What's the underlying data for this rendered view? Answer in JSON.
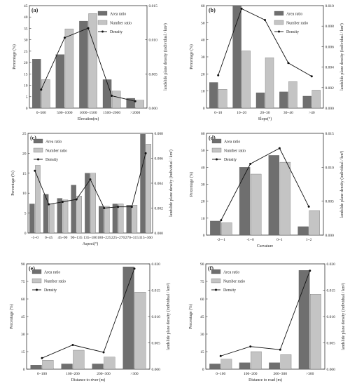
{
  "colors": {
    "area": "#6f6f6f",
    "number": "#c4c4c4",
    "density": "#111111",
    "axis": "#333333"
  },
  "legend": {
    "area": "Area ratio",
    "number": "Number ratio",
    "density": "Density"
  },
  "chart_data": [
    {
      "type": "bar",
      "panel_label": "(a)",
      "categories": [
        "0~500",
        "500~1000",
        "1000~1500",
        "1500~2000",
        ">2000"
      ],
      "series": [
        {
          "name": "Area ratio",
          "values": [
            21.5,
            23.5,
            38.2,
            12.5,
            4.3
          ]
        },
        {
          "name": "Number ratio",
          "values": [
            12.5,
            34.8,
            41.5,
            7.5,
            3.5
          ]
        }
      ],
      "line": {
        "name": "Density",
        "values": [
          0.0027,
          0.0103,
          0.0117,
          0.0018,
          0.001
        ]
      },
      "xlabel": "Elevation(m)",
      "ylabel": "Percentage (%)",
      "y2label": "landslide plane density (individual / km²)",
      "ylim": [
        0,
        45
      ],
      "yticks": [
        0,
        5,
        10,
        15,
        20,
        25,
        30,
        35,
        40,
        45
      ],
      "y2lim": [
        0,
        0.015
      ],
      "y2ticks": [
        "0.000",
        "0.005",
        "0.010",
        "0.015"
      ],
      "y2tickvals": [
        0,
        0.005,
        0.01,
        0.015
      ],
      "legend_position": "top-right"
    },
    {
      "type": "bar",
      "panel_label": "(b)",
      "categories": [
        "0~10",
        "10~20",
        "20~30",
        "30~40",
        ">40"
      ],
      "series": [
        {
          "name": "Area ratio",
          "values": [
            15,
            60,
            9,
            9.5,
            7
          ]
        },
        {
          "name": "Number ratio",
          "values": [
            11,
            33.5,
            29.5,
            15.5,
            10.5
          ]
        }
      ],
      "line": {
        "name": "Density",
        "values": [
          0.0032,
          0.0097,
          0.0086,
          0.0044,
          0.0031
        ]
      },
      "xlabel": "Slope(°)",
      "ylabel": "Percentage (%)",
      "y2label": "landslide plane density (individual / km²)",
      "ylim": [
        0,
        60
      ],
      "yticks": [
        0,
        10,
        20,
        30,
        40,
        50,
        60
      ],
      "y2lim": [
        0,
        0.01
      ],
      "y2ticks": [
        "0.000",
        "0.002",
        "0.004",
        "0.006",
        "0.008",
        "0.010"
      ],
      "y2tickvals": [
        0,
        0.002,
        0.004,
        0.006,
        0.008,
        0.01
      ],
      "legend_position": "top-right"
    },
    {
      "type": "bar",
      "panel_label": "(c)",
      "categories": [
        "-1~0",
        "0~45",
        "45~90",
        "90~135",
        "135~180",
        "180~225",
        "225~270",
        "270~315",
        "315~360"
      ],
      "series": [
        {
          "name": "Area ratio",
          "values": [
            7.3,
            9.7,
            8.7,
            12.0,
            15.0,
            6.7,
            7.3,
            7.0,
            24.8
          ]
        },
        {
          "name": "Number ratio",
          "values": [
            17.0,
            7.3,
            8.3,
            9.3,
            15.0,
            6.7,
            7.3,
            7.0,
            22.3
          ]
        }
      ],
      "line": {
        "name": "Density",
        "values": [
          0.005,
          0.0023,
          0.0025,
          0.0027,
          0.0043,
          0.002,
          0.0021,
          0.0021,
          0.0064
        ]
      },
      "xlabel": "Aspect(°)",
      "ylabel": "Percentage (%)",
      "y2label": "landslide plane density (individual / km²)",
      "ylim": [
        0,
        25
      ],
      "yticks": [
        0,
        5,
        10,
        15,
        20,
        25
      ],
      "y2lim": [
        0,
        0.008
      ],
      "y2ticks": [
        "0.000",
        "0.002",
        "0.004",
        "0.006",
        "0.008"
      ],
      "y2tickvals": [
        0,
        0.002,
        0.004,
        0.006,
        0.008
      ],
      "legend_position": "top-left"
    },
    {
      "type": "bar",
      "panel_label": "(d)",
      "categories": [
        "-2~-1",
        "-1~0",
        "0~1",
        "1~2"
      ],
      "series": [
        {
          "name": "Area ratio",
          "values": [
            8.3,
            40,
            47,
            5
          ]
        },
        {
          "name": "Number ratio",
          "values": [
            7.3,
            36,
            43,
            14.5
          ]
        }
      ],
      "line": {
        "name": "Density",
        "values": [
          0.0022,
          0.0105,
          0.0128,
          0.0042
        ]
      },
      "xlabel": "Curvature",
      "ylabel": "Percentage (%)",
      "y2label": "landslide plane density (individual / km²)",
      "ylim": [
        0,
        60
      ],
      "yticks": [
        0,
        10,
        20,
        30,
        40,
        50,
        60
      ],
      "y2lim": [
        0,
        0.015
      ],
      "y2ticks": [
        "0.000",
        "0.005",
        "0.010",
        "0.015"
      ],
      "y2tickvals": [
        0,
        0.005,
        0.01,
        0.015
      ],
      "legend_position": "top-left"
    },
    {
      "type": "bar",
      "panel_label": "(e)",
      "categories": [
        "0~100",
        "100~200",
        "200~300",
        ">300"
      ],
      "series": [
        {
          "name": "Area ratio",
          "values": [
            3.5,
            4.5,
            4.5,
            87.5
          ]
        },
        {
          "name": "Number ratio",
          "values": [
            7.7,
            16.2,
            10.3,
            65.8
          ]
        }
      ],
      "line": {
        "name": "Density",
        "values": [
          0.0021,
          0.0046,
          0.0032,
          0.0191
        ]
      },
      "xlabel": "Distance to river (m)",
      "ylabel": "Percentage (%)",
      "y2label": "landslide plane density (individual / km²)",
      "ylim": [
        0,
        90
      ],
      "yticks": [
        0,
        15,
        30,
        45,
        60,
        75,
        90
      ],
      "y2lim": [
        0,
        0.02
      ],
      "y2ticks": [
        "0.000",
        "0.005",
        "0.010",
        "0.015",
        "0.020"
      ],
      "y2tickvals": [
        0,
        0.005,
        0.01,
        0.015,
        0.02
      ],
      "legend_position": "top-left"
    },
    {
      "type": "bar",
      "panel_label": "(f)",
      "categories": [
        "0~100",
        "100~200",
        "200~300",
        ">300"
      ],
      "series": [
        {
          "name": "Area ratio",
          "values": [
            4.5,
            5.5,
            5.5,
            84.5
          ]
        },
        {
          "name": "Number ratio",
          "values": [
            8.5,
            15.0,
            12.5,
            64.0
          ]
        }
      ],
      "line": {
        "name": "Density",
        "values": [
          0.0025,
          0.0043,
          0.0037,
          0.0187
        ]
      },
      "xlabel": "Distance to road (m)",
      "ylabel": "Percentage (%)",
      "y2label": "landslide plane density (individual / km²)",
      "ylim": [
        0,
        90
      ],
      "yticks": [
        0,
        15,
        30,
        45,
        60,
        75,
        90
      ],
      "y2lim": [
        0,
        0.02
      ],
      "y2ticks": [
        "0.000",
        "0.005",
        "0.010",
        "0.015",
        "0.020"
      ],
      "y2tickvals": [
        0,
        0.005,
        0.01,
        0.015,
        0.02
      ],
      "legend_position": "top-left"
    }
  ]
}
